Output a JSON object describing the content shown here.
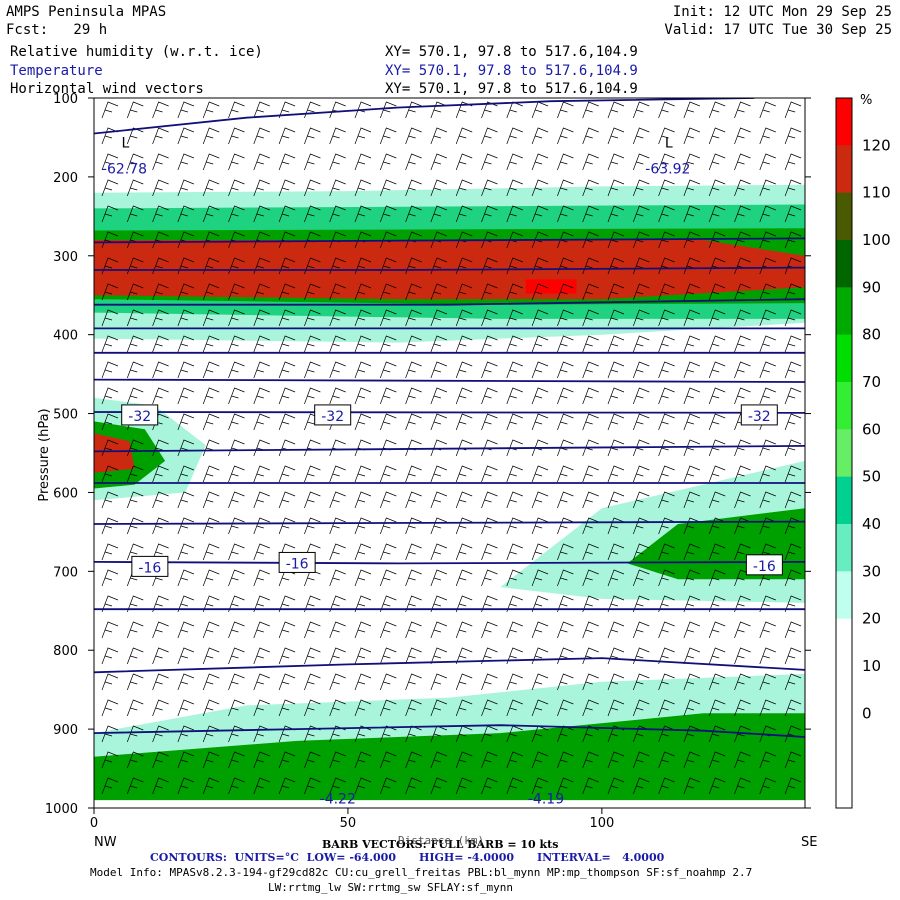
{
  "header": {
    "model": "AMPS Peninsula MPAS",
    "fcst": "Fcst:   29 h",
    "init": "Init: 12 UTC Mon 29 Sep 25",
    "valid": "Valid: 17 UTC Tue 30 Sep 25",
    "fields": [
      {
        "name": "Relative humidity (w.r.t. ice)",
        "xy": "XY= 570.1, 97.8 to 517.6,104.9",
        "color": "#000000"
      },
      {
        "name": "Temperature",
        "xy": "XY= 570.1, 97.8 to 517.6,104.9",
        "color": "#1a1aa8"
      },
      {
        "name": "Horizontal wind vectors",
        "xy": "XY= 570.1, 97.8 to 517.6,104.9",
        "color": "#000000"
      }
    ]
  },
  "footer": {
    "barb": "BARB VECTORS: FULL BARB = 10 kts",
    "distance_label": "Distance (km)",
    "contours": "CONTOURS:  UNITS=°C  LOW= -64.000      HIGH= -4.0000      INTERVAL=   4.0000",
    "model_info_1": "Model Info: MPASv8.2.3-194-gf29cd82c CU:cu_grell_freitas PBL:bl_mynn MP:mp_thompson SF:sf_noahmp 2.7",
    "model_info_2": "LW:rrtmg_lw SW:rrtmg_sw SFLAY:sf_mynn"
  },
  "chart_data": {
    "type": "heatmap",
    "ylabel": "Pressure (hPa)",
    "xlabel": "Distance (km)",
    "xlim": [
      0,
      140
    ],
    "ylim": [
      1000,
      100
    ],
    "x_ticks": [
      0,
      50,
      100
    ],
    "y_ticks": [
      100,
      200,
      300,
      400,
      500,
      600,
      700,
      800,
      900,
      1000
    ],
    "x_end_labels": {
      "left": "NW",
      "right": "SE"
    },
    "colorbar": {
      "unit": "%",
      "ticks": [
        120,
        110,
        100,
        90,
        80,
        70,
        60,
        50,
        40,
        30,
        20,
        10,
        0
      ],
      "colors": [
        "#ff0000",
        "#cc2a10",
        "#4a5a00",
        "#006600",
        "#00aa00",
        "#00dd00",
        "#33ee33",
        "#66ee66",
        "#00d090",
        "#66eec0",
        "#bfffee",
        "#ffffff",
        "#ffffff",
        "#ffffff",
        "#ffffff"
      ]
    },
    "temperature_contours": {
      "units": "°C",
      "low": -64.0,
      "high": -4.0,
      "interval": 4.0,
      "lines": [
        {
          "t": -60,
          "p": [
            [
              0,
              145
            ],
            [
              30,
              125
            ],
            [
              60,
              112
            ],
            [
              90,
              104
            ],
            [
              130,
              100
            ]
          ]
        },
        {
          "t": -56,
          "p": [
            [
              0,
              283
            ],
            [
              140,
              278
            ]
          ]
        },
        {
          "t": -52,
          "p": [
            [
              0,
              318
            ],
            [
              60,
              318
            ],
            [
              140,
              315
            ]
          ]
        },
        {
          "t": -48,
          "p": [
            [
              0,
              362
            ],
            [
              70,
              362
            ],
            [
              140,
              355
            ]
          ]
        },
        {
          "t": -44,
          "p": [
            [
              0,
              392
            ],
            [
              140,
              392
            ]
          ]
        },
        {
          "t": -40,
          "p": [
            [
              0,
              423
            ],
            [
              140,
              423
            ]
          ]
        },
        {
          "t": -36,
          "p": [
            [
              0,
              457
            ],
            [
              140,
              460
            ]
          ]
        },
        {
          "t": -32,
          "p": [
            [
              0,
              498
            ],
            [
              140,
              499
            ]
          ]
        },
        {
          "t": -28,
          "p": [
            [
              0,
              548
            ],
            [
              140,
              541
            ]
          ]
        },
        {
          "t": -24,
          "p": [
            [
              0,
              588
            ],
            [
              140,
              588
            ]
          ]
        },
        {
          "t": -20,
          "p": [
            [
              0,
              640
            ],
            [
              140,
              637
            ]
          ]
        },
        {
          "t": -16,
          "p": [
            [
              0,
              688
            ],
            [
              60,
              690
            ],
            [
              140,
              688
            ]
          ]
        },
        {
          "t": -12,
          "p": [
            [
              0,
              748
            ],
            [
              140,
              748
            ]
          ]
        },
        {
          "t": -8,
          "p": [
            [
              0,
              828
            ],
            [
              50,
              818
            ],
            [
              100,
              810
            ],
            [
              140,
              825
            ]
          ]
        },
        {
          "t": -4,
          "p": [
            [
              0,
              905
            ],
            [
              40,
              900
            ],
            [
              80,
              895
            ],
            [
              120,
              902
            ],
            [
              140,
              910
            ]
          ]
        }
      ],
      "labels": [
        {
          "text": "-32",
          "x": 9,
          "p": 503
        },
        {
          "text": "-32",
          "x": 47,
          "p": 503
        },
        {
          "text": "-32",
          "x": 131,
          "p": 503
        },
        {
          "text": "-16",
          "x": 11,
          "p": 695
        },
        {
          "text": "-16",
          "x": 40,
          "p": 690
        },
        {
          "text": "-16",
          "x": 132,
          "p": 693
        }
      ]
    },
    "extrema": [
      {
        "label": "L",
        "x": 6,
        "p": 165,
        "value": "-62.78"
      },
      {
        "label": "L",
        "x": 113,
        "p": 165,
        "value": "-63.92"
      },
      {
        "label": "",
        "x": 48,
        "p": 978,
        "value": "-4.22"
      },
      {
        "label": "",
        "x": 89,
        "p": 978,
        "value": "-4.19"
      }
    ],
    "rh_regions": [
      {
        "level": 30,
        "p": [
          [
            0,
            220
          ],
          [
            50,
            218
          ],
          [
            100,
            212
          ],
          [
            140,
            210
          ],
          [
            140,
            385
          ],
          [
            100,
            400
          ],
          [
            60,
            410
          ],
          [
            0,
            405
          ]
        ]
      },
      {
        "level": 50,
        "p": [
          [
            0,
            240
          ],
          [
            140,
            235
          ],
          [
            140,
            380
          ],
          [
            80,
            380
          ],
          [
            0,
            372
          ]
        ]
      },
      {
        "level": 90,
        "p": [
          [
            0,
            268
          ],
          [
            140,
            265
          ],
          [
            140,
            360
          ],
          [
            80,
            362
          ],
          [
            0,
            355
          ]
        ]
      },
      {
        "level": 110,
        "p": [
          [
            0,
            280
          ],
          [
            120,
            280
          ],
          [
            140,
            300
          ],
          [
            140,
            340
          ],
          [
            100,
            355
          ],
          [
            60,
            355
          ],
          [
            0,
            350
          ]
        ]
      },
      {
        "level": 120,
        "p": [
          [
            85,
            330
          ],
          [
            95,
            330
          ],
          [
            95,
            348
          ],
          [
            85,
            348
          ]
        ]
      },
      {
        "level": 30,
        "p": [
          [
            0,
            480
          ],
          [
            12,
            490
          ],
          [
            22,
            540
          ],
          [
            18,
            600
          ],
          [
            0,
            610
          ]
        ]
      },
      {
        "level": 90,
        "p": [
          [
            0,
            510
          ],
          [
            10,
            520
          ],
          [
            14,
            560
          ],
          [
            8,
            590
          ],
          [
            0,
            595
          ]
        ]
      },
      {
        "level": 110,
        "p": [
          [
            0,
            525
          ],
          [
            7,
            535
          ],
          [
            8,
            570
          ],
          [
            0,
            575
          ]
        ]
      },
      {
        "level": 30,
        "p": [
          [
            80,
            720
          ],
          [
            100,
            620
          ],
          [
            140,
            560
          ],
          [
            140,
            740
          ],
          [
            100,
            735
          ]
        ]
      },
      {
        "level": 90,
        "p": [
          [
            105,
            690
          ],
          [
            115,
            640
          ],
          [
            140,
            620
          ],
          [
            140,
            710
          ],
          [
            115,
            710
          ]
        ]
      },
      {
        "level": 30,
        "p": [
          [
            0,
            905
          ],
          [
            30,
            870
          ],
          [
            70,
            860
          ],
          [
            100,
            840
          ],
          [
            140,
            830
          ],
          [
            140,
            990
          ],
          [
            0,
            990
          ]
        ]
      },
      {
        "level": 90,
        "p": [
          [
            0,
            935
          ],
          [
            40,
            915
          ],
          [
            80,
            905
          ],
          [
            120,
            880
          ],
          [
            140,
            880
          ],
          [
            140,
            990
          ],
          [
            0,
            990
          ]
        ]
      }
    ]
  }
}
